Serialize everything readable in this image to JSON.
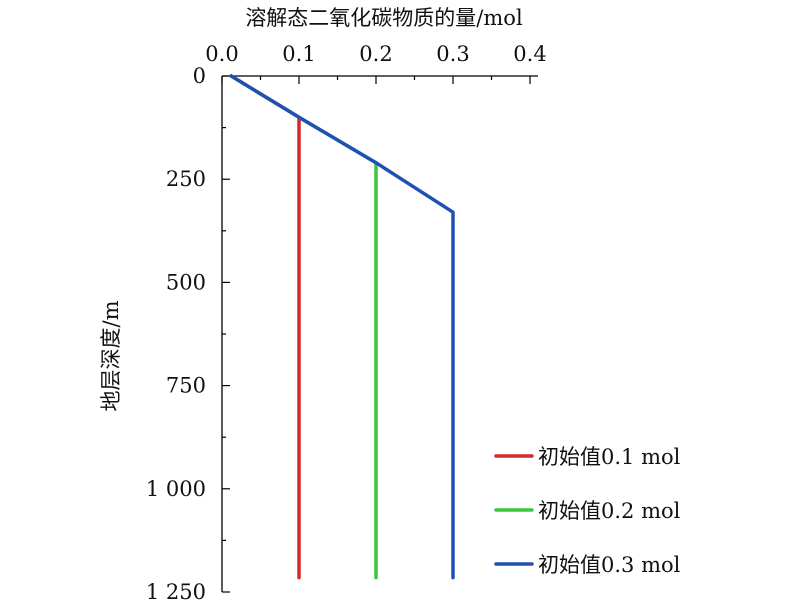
{
  "chart_data": {
    "type": "line",
    "title": "",
    "xlabel": "溶解态二氧化碳物质的量/mol",
    "ylabel": "地层深度/m",
    "x_axis_position": "top",
    "y_axis_inverted": true,
    "xlim": [
      0.0,
      0.4
    ],
    "ylim": [
      0,
      1250
    ],
    "x_ticks": [
      0.0,
      0.1,
      0.2,
      0.3,
      0.4
    ],
    "x_tick_labels": [
      "0.0",
      "0.1",
      "0.2",
      "0.3",
      "0.4"
    ],
    "y_ticks": [
      0,
      250,
      500,
      750,
      1000,
      1250
    ],
    "y_tick_labels": [
      "0",
      "250",
      "500",
      "750",
      "1 000",
      "1 250"
    ],
    "grid": false,
    "legend_position": "bottom-right",
    "series": [
      {
        "name": "初始值0.1 mol",
        "color": "#d42a2a",
        "points": [
          [
            0.012,
            0
          ],
          [
            0.1,
            100
          ],
          [
            0.1,
            1215
          ]
        ]
      },
      {
        "name": "初始值0.2 mol",
        "color": "#3cc83c",
        "points": [
          [
            0.012,
            0
          ],
          [
            0.1,
            100
          ],
          [
            0.2,
            210
          ],
          [
            0.2,
            1215
          ]
        ]
      },
      {
        "name": "初始值0.3 mol",
        "color": "#2050b4",
        "points": [
          [
            0.012,
            0
          ],
          [
            0.1,
            100
          ],
          [
            0.2,
            210
          ],
          [
            0.3,
            330
          ],
          [
            0.3,
            1215
          ]
        ]
      }
    ]
  }
}
